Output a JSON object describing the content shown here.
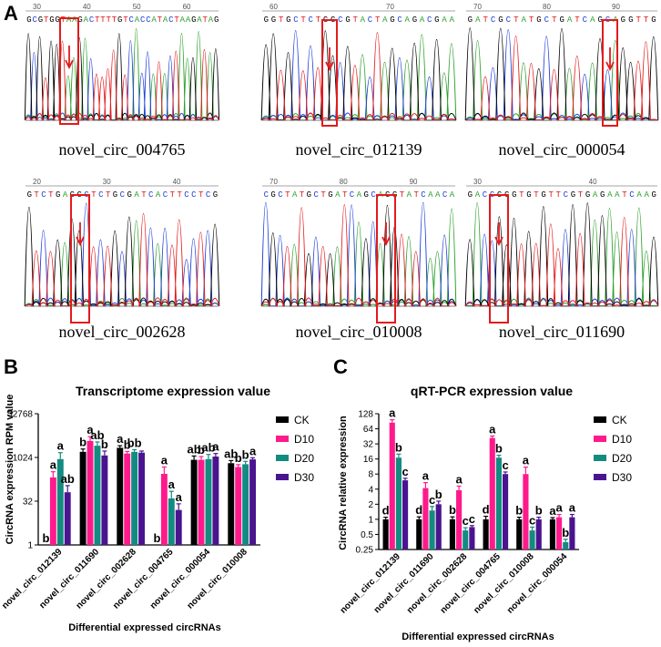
{
  "panel_labels": {
    "a": "A",
    "b": "B",
    "c": "C"
  },
  "chromatograms": [
    {
      "name": "novel_circ_004765",
      "sequence": "GCGTGGTAAGACTTTTGTCACCATACTAAGATAG",
      "positions": [
        "30",
        "40",
        "50",
        "60"
      ]
    },
    {
      "name": "novel_circ_012139",
      "sequence": "GGTGCTCTGGCGTACTAGCAGACGAA",
      "positions": [
        "60",
        "70"
      ]
    },
    {
      "name": "novel_circ_000054",
      "sequence": "GATCGCTATGCTGATCAGCAGGTTG",
      "positions": [
        "70",
        "80",
        "90"
      ]
    },
    {
      "name": "novel_circ_002628",
      "sequence": "GTCTGAGGCTCTGCGATCACTTCCTCG",
      "positions": [
        "20",
        "30",
        "40"
      ]
    },
    {
      "name": "novel_circ_010008",
      "sequence": "CGCTATGCTGATCAGCAGGTATCAACA",
      "positions": [
        "70",
        "80",
        "90"
      ]
    },
    {
      "name": "novel_circ_011690",
      "sequence": "GACCGGGTGTGTTCGTGAGAATCAAG",
      "positions": [
        "30",
        "40"
      ]
    }
  ],
  "legend": [
    "CK",
    "D10",
    "D20",
    "D30"
  ],
  "colors": {
    "CK": "#000000",
    "D10": "#ff1a8c",
    "D20": "#138b80",
    "D30": "#4a1490",
    "base_A": "#2ca02c",
    "base_C": "#1f3fd6",
    "base_G": "#000000",
    "base_T": "#e31a1c",
    "highlight": "#e31a1c"
  },
  "chart_data": [
    {
      "type": "bar",
      "title": "Transcriptome expression value",
      "xlabel": "Differential expressed circRNAs",
      "ylabel": "CircRNA expression RPM value",
      "yscale": "log2",
      "ylim": [
        1,
        32768
      ],
      "yticks": [
        "1",
        "32",
        "1024",
        "32768"
      ],
      "categories": [
        "novel_circ_012139",
        "novel_circ_011690",
        "novel_circ_002628",
        "novel_circ_004765",
        "novel_circ_000054",
        "novel_circ_010008"
      ],
      "series": [
        {
          "name": "CK",
          "values": [
            1,
            1600,
            2200,
            1,
            850,
            650
          ],
          "errors": [
            0,
            400,
            400,
            0,
            300,
            150
          ],
          "letters": [
            "b",
            "b",
            "a",
            "b",
            "ab",
            "ab"
          ]
        },
        {
          "name": "D10",
          "values": [
            210,
            3800,
            1400,
            280,
            850,
            480
          ],
          "errors": [
            120,
            1500,
            250,
            200,
            250,
            100
          ],
          "letters": [
            "a",
            "a",
            "b",
            "a",
            "b",
            "b"
          ]
        },
        {
          "name": "D20",
          "values": [
            900,
            2600,
            1600,
            40,
            900,
            600
          ],
          "errors": [
            600,
            900,
            300,
            30,
            400,
            150
          ],
          "letters": [
            "a",
            "ab",
            "bb",
            "a",
            "ab",
            "b"
          ]
        },
        {
          "name": "D30",
          "values": [
            65,
            1200,
            1500,
            16,
            1100,
            880
          ],
          "errors": [
            45,
            500,
            200,
            10,
            300,
            120
          ],
          "letters": [
            "ab",
            "b",
            "",
            "a",
            "a",
            "a"
          ]
        }
      ]
    },
    {
      "type": "bar",
      "title": "qRT-PCR expression value",
      "xlabel": "Differential expressed circRNAs",
      "ylabel": "CircRNA relative expression",
      "yscale": "log2",
      "ylim": [
        0.25,
        128
      ],
      "yticks": [
        "0.25",
        "0.5",
        "1",
        "2",
        "4",
        "8",
        "16",
        "32",
        "64",
        "128"
      ],
      "categories": [
        "novel_circ_012139",
        "novel_circ_011690",
        "novel_circ_002628",
        "novel_circ_004765",
        "novel_circ_010008",
        "novel_circ_000054"
      ],
      "series": [
        {
          "name": "CK",
          "values": [
            1,
            1,
            1,
            1,
            1,
            1
          ],
          "errors": [
            0.1,
            0.12,
            0.12,
            0.15,
            0.1,
            0.08
          ],
          "letters": [
            "d",
            "d",
            "b",
            "d",
            "b",
            "a"
          ]
        },
        {
          "name": "D10",
          "values": [
            85,
            4.2,
            3.8,
            42,
            8,
            1.1
          ],
          "errors": [
            12,
            1.2,
            0.8,
            4,
            3,
            0.15
          ],
          "letters": [
            "a",
            "a",
            "a",
            "a",
            "a",
            "a"
          ]
        },
        {
          "name": "D20",
          "values": [
            17,
            1.5,
            0.6,
            17,
            0.6,
            0.35
          ],
          "errors": [
            3,
            0.3,
            0.08,
            2,
            0.1,
            0.05
          ],
          "letters": [
            "b",
            "c",
            "c",
            "b",
            "c",
            "b"
          ]
        },
        {
          "name": "D30",
          "values": [
            6,
            2,
            0.7,
            8,
            1,
            1.1
          ],
          "errors": [
            0.6,
            0.3,
            0.05,
            0.8,
            0.1,
            0.15
          ],
          "letters": [
            "c",
            "b",
            "c",
            "c",
            "b",
            "a"
          ]
        }
      ]
    }
  ]
}
